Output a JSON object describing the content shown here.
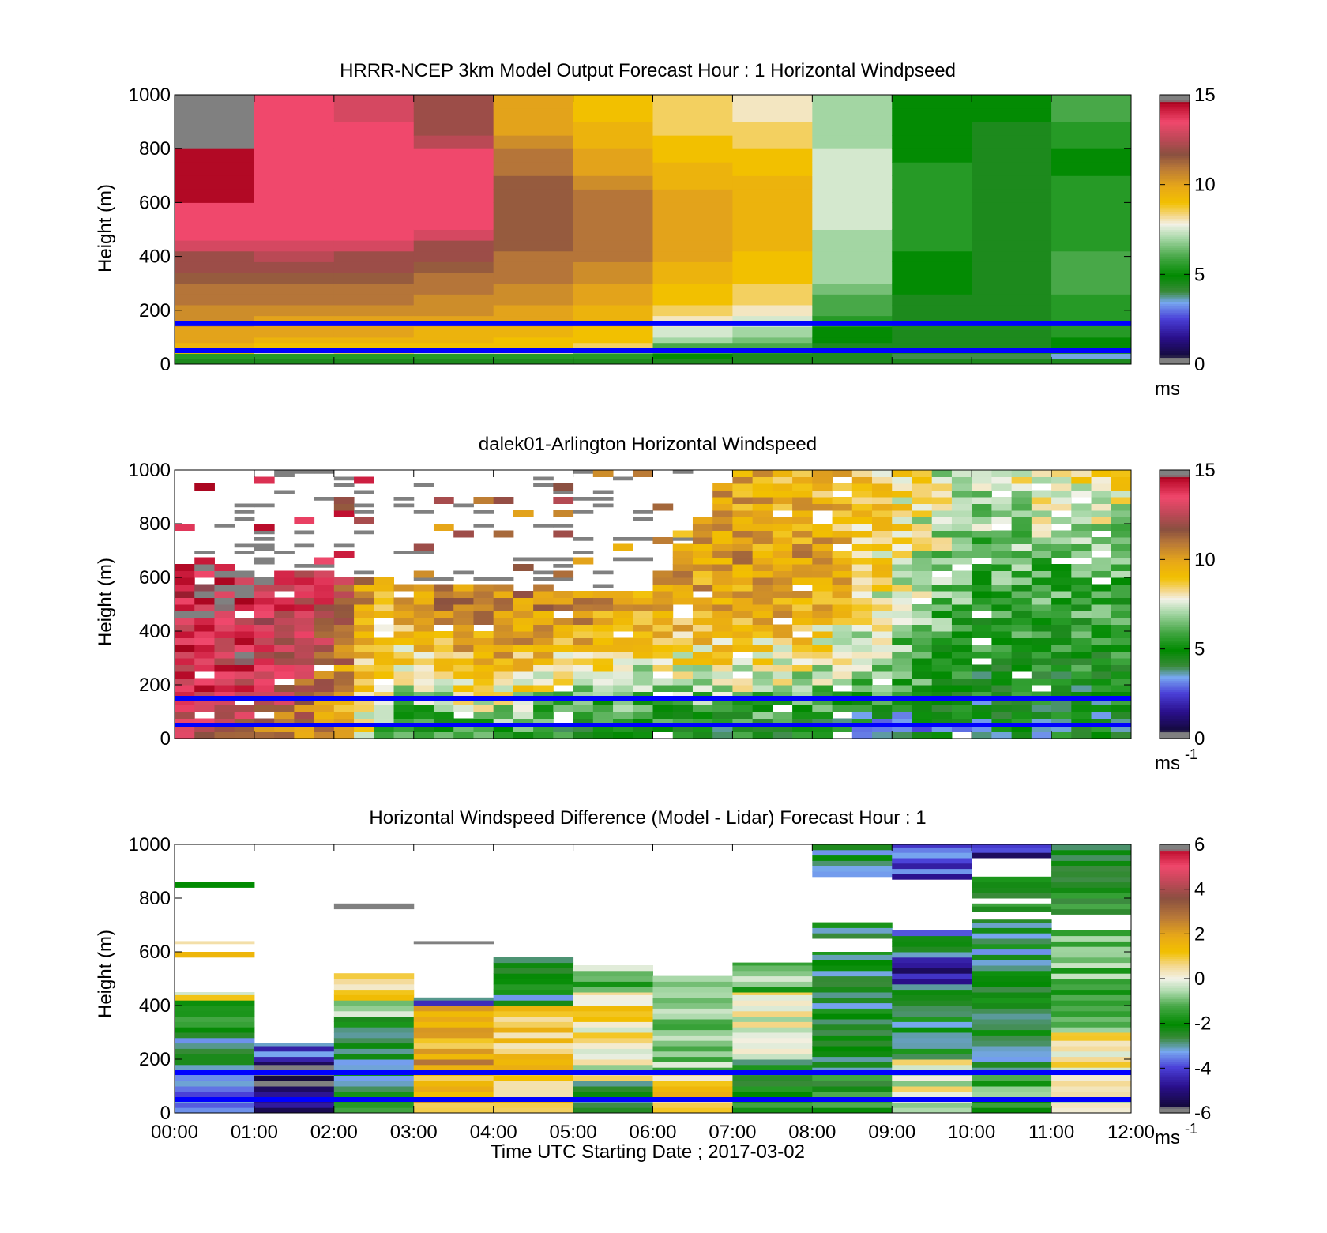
{
  "chart_data": [
    {
      "type": "heatmap",
      "title": "HRRR-NCEP 3km Model Output   Forecast Hour : 1 Horizontal Windpseed",
      "xlabel": "",
      "ylabel": "Height (m)",
      "xlim": [
        0,
        12
      ],
      "ylim": [
        0,
        1000
      ],
      "yticks": [
        "0",
        "200",
        "400",
        "600",
        "800",
        "1000"
      ],
      "colorbar": {
        "ticks": [
          "0",
          "5",
          "10",
          "15"
        ],
        "range": [
          0,
          15
        ],
        "unit": "ms",
        "unit_sup": ""
      },
      "reference_heights": [
        50,
        150
      ],
      "grid": false,
      "heights": [
        40,
        60,
        80,
        100,
        140,
        180,
        220,
        260,
        300,
        340,
        380,
        420,
        460,
        500,
        550,
        600,
        650,
        700,
        750,
        800,
        850,
        900,
        950,
        1000
      ],
      "columns": [
        {
          "time": 0,
          "speeds": [
            5.5,
            9,
            9.5,
            10,
            10,
            10.5,
            10.5,
            11,
            11,
            11.5,
            12,
            12,
            13,
            13.5,
            13.5,
            13.5,
            14.5,
            14.5,
            14.5,
            14.5,
            15.2,
            15.2,
            15.2,
            15.2
          ]
        },
        {
          "time": 1,
          "speeds": [
            5.5,
            8,
            9,
            9.5,
            10,
            10,
            10.5,
            11,
            11,
            11.5,
            12,
            12.5,
            13,
            13.5,
            13.5,
            13.5,
            13.5,
            13.5,
            13.5,
            13.5,
            13.5,
            13.5,
            13.5,
            13.5
          ]
        },
        {
          "time": 2,
          "speeds": [
            5.5,
            8.5,
            9,
            9.5,
            10,
            10,
            10.5,
            11,
            11,
            11.5,
            12,
            12,
            13,
            13.5,
            13.5,
            13.5,
            13.5,
            13.5,
            13.5,
            13.5,
            13.5,
            13.5,
            13,
            13
          ]
        },
        {
          "time": 3,
          "speeds": [
            5.5,
            7.5,
            9,
            9.5,
            9.5,
            10,
            10.5,
            10.5,
            11,
            11,
            11.5,
            12,
            12,
            13,
            13.5,
            13.5,
            13.5,
            13.5,
            13.5,
            13.5,
            12.5,
            12,
            12,
            12
          ]
        },
        {
          "time": 4,
          "speeds": [
            5.5,
            8,
            9,
            9,
            9.5,
            10,
            10,
            10.5,
            10.5,
            11,
            11,
            11,
            11.5,
            11.5,
            11.5,
            11.5,
            11.5,
            11.5,
            11,
            11,
            10.5,
            10,
            10,
            10
          ]
        },
        {
          "time": 5,
          "speeds": [
            5.5,
            6.5,
            8.5,
            9,
            9,
            9.5,
            9.5,
            10,
            10,
            10.5,
            10.5,
            11,
            11,
            11,
            11,
            11,
            11,
            10.5,
            10,
            10,
            9.5,
            9.5,
            9,
            9
          ]
        },
        {
          "time": 6,
          "speeds": [
            5,
            6,
            6,
            7,
            7.5,
            8,
            8.5,
            9,
            9,
            9.5,
            9.5,
            10,
            10,
            10,
            10,
            10,
            10,
            9.5,
            9.5,
            9,
            9,
            8.5,
            8.5,
            8.5
          ]
        },
        {
          "time": 7,
          "speeds": [
            4.5,
            5.5,
            6,
            6.5,
            7,
            7.5,
            8,
            8.5,
            8.5,
            9,
            9,
            9,
            9.5,
            9.5,
            9.5,
            9.5,
            9.5,
            9.5,
            9,
            9,
            8.5,
            8.5,
            8,
            8
          ]
        },
        {
          "time": 8,
          "speeds": [
            4.5,
            4.5,
            4.5,
            5,
            5,
            5.5,
            6,
            6,
            6.5,
            7,
            7,
            7,
            7,
            7,
            7.5,
            7.5,
            7.5,
            7.5,
            7.5,
            7.5,
            7,
            7,
            7,
            7
          ]
        },
        {
          "time": 9,
          "speeds": [
            4,
            4.5,
            4.5,
            4.5,
            4.5,
            4.5,
            4.5,
            4.5,
            5,
            5,
            5,
            5,
            5.5,
            5.5,
            5.5,
            5.5,
            5.5,
            5.5,
            5.5,
            5,
            5,
            5,
            5,
            5
          ]
        },
        {
          "time": 10,
          "speeds": [
            4,
            4.5,
            4.5,
            4.5,
            4.5,
            4.5,
            4.5,
            4.5,
            4.5,
            4.5,
            4.5,
            4.5,
            4.5,
            4.5,
            4.5,
            4.5,
            4.5,
            4.5,
            4.5,
            4.5,
            4.5,
            4.5,
            5,
            5
          ]
        },
        {
          "time": 11,
          "speeds": [
            3.5,
            4.5,
            5,
            5,
            5.5,
            5.5,
            5.5,
            5.5,
            6,
            6,
            6,
            6,
            5.5,
            5.5,
            5.5,
            5.5,
            5.5,
            5.5,
            5,
            5,
            5.5,
            5.5,
            6,
            6
          ]
        }
      ]
    },
    {
      "type": "heatmap",
      "title": "dalek01-Arlington  Horizontal Windspeed",
      "xlabel": "",
      "ylabel": "Height (m)",
      "xlim": [
        0,
        12
      ],
      "ylim": [
        0,
        1000
      ],
      "yticks": [
        "0",
        "200",
        "400",
        "600",
        "800",
        "1000"
      ],
      "colorbar": {
        "ticks": [
          "0",
          "5",
          "10",
          "15"
        ],
        "range": [
          0,
          15
        ],
        "unit": "ms",
        "unit_sup": "-1"
      },
      "reference_heights": [
        50,
        150
      ],
      "grid": false,
      "time_step_hours": 0.25,
      "height_step_m": 25,
      "profile_points": [
        {
          "time": 0,
          "speeds": [
            [
              30,
              13
            ],
            [
              200,
              13.5
            ],
            [
              400,
              13.5
            ],
            [
              600,
              14
            ]
          ],
          "top": 650
        },
        {
          "time": 1,
          "speeds": [
            [
              30,
              11.5
            ],
            [
              200,
              13.5
            ],
            [
              400,
              13.5
            ],
            [
              600,
              14
            ]
          ],
          "top": 630
        },
        {
          "time": 2,
          "speeds": [
            [
              30,
              10
            ],
            [
              200,
              11
            ],
            [
              400,
              12.5
            ],
            [
              600,
              13
            ]
          ],
          "top": 620
        },
        {
          "time": 2.5,
          "speeds": [
            [
              30,
              7
            ],
            [
              200,
              7.5
            ],
            [
              400,
              9
            ],
            [
              600,
              9.5
            ]
          ],
          "top": 600
        },
        {
          "time": 3,
          "speeds": [
            [
              30,
              5
            ],
            [
              200,
              8
            ],
            [
              400,
              9.5
            ],
            [
              600,
              11
            ]
          ],
          "top": 580
        },
        {
          "time": 4,
          "speeds": [
            [
              30,
              6
            ],
            [
              200,
              9
            ],
            [
              400,
              10.5
            ],
            [
              600,
              11
            ]
          ],
          "top": 580
        },
        {
          "time": 5,
          "speeds": [
            [
              30,
              5
            ],
            [
              200,
              7.5
            ],
            [
              400,
              10
            ],
            [
              600,
              11
            ]
          ],
          "top": 560
        },
        {
          "time": 6,
          "speeds": [
            [
              30,
              5
            ],
            [
              200,
              7
            ],
            [
              400,
              9.5
            ],
            [
              600,
              10
            ]
          ],
          "top": 560
        },
        {
          "time": 7,
          "speeds": [
            [
              30,
              5
            ],
            [
              200,
              7.5
            ],
            [
              400,
              9.5
            ],
            [
              600,
              10
            ],
            [
              900,
              10
            ]
          ],
          "top": 1000
        },
        {
          "time": 8,
          "speeds": [
            [
              30,
              5
            ],
            [
              200,
              7
            ],
            [
              400,
              9
            ],
            [
              600,
              10.5
            ],
            [
              900,
              9.5
            ]
          ],
          "top": 1000
        },
        {
          "time": 9,
          "speeds": [
            [
              30,
              3.5
            ],
            [
              200,
              6
            ],
            [
              400,
              7
            ],
            [
              600,
              8
            ],
            [
              900,
              8.5
            ]
          ],
          "top": 1000
        },
        {
          "time": 10,
          "speeds": [
            [
              30,
              4
            ],
            [
              200,
              5
            ],
            [
              400,
              5.5
            ],
            [
              600,
              6
            ],
            [
              900,
              7
            ]
          ],
          "top": 1000
        },
        {
          "time": 11,
          "speeds": [
            [
              30,
              4.5
            ],
            [
              200,
              5
            ],
            [
              400,
              5.5
            ],
            [
              600,
              6
            ],
            [
              900,
              8
            ]
          ],
          "top": 1000
        },
        {
          "time": 11.75,
          "speeds": [
            [
              30,
              4.5
            ],
            [
              200,
              5
            ],
            [
              400,
              5.5
            ],
            [
              600,
              6
            ],
            [
              900,
              8
            ]
          ],
          "top": 1000
        }
      ]
    },
    {
      "type": "heatmap",
      "title": "Horizontal Windspeed Difference (Model - Lidar) Forecast Hour : 1",
      "xlabel": "Time UTC  Starting Date ; 2017-03-02",
      "ylabel": "Height (m)",
      "xlim": [
        0,
        12
      ],
      "ylim": [
        0,
        1000
      ],
      "xticks": [
        "00:00",
        "01:00",
        "02:00",
        "03:00",
        "04:00",
        "05:00",
        "06:00",
        "07:00",
        "08:00",
        "09:00",
        "10:00",
        "11:00",
        "12:00"
      ],
      "yticks": [
        "0",
        "200",
        "400",
        "600",
        "800",
        "1000"
      ],
      "colorbar": {
        "ticks": [
          "-6",
          "-4",
          "-2",
          "0",
          "2",
          "4",
          "6"
        ],
        "range": [
          -6,
          6
        ],
        "unit": "ms",
        "unit_sup": "-1"
      },
      "reference_heights": [
        50,
        150
      ],
      "grid": false,
      "height_step_m": 20,
      "columns": [
        {
          "time": 0,
          "segments": [
            [
              0,
              160,
              -4
            ],
            [
              160,
              300,
              -2.5
            ],
            [
              300,
              420,
              -1.5
            ],
            [
              420,
              450,
              0.5
            ],
            [
              580,
              600,
              1.5
            ],
            [
              630,
              640,
              0.8
            ],
            [
              840,
              860,
              -2.5
            ]
          ]
        },
        {
          "time": 1,
          "segments": [
            [
              0,
              190,
              -5.5
            ],
            [
              190,
              260,
              -4
            ]
          ]
        },
        {
          "time": 2,
          "segments": [
            [
              0,
              100,
              -2
            ],
            [
              100,
              360,
              -2.5
            ],
            [
              360,
              420,
              -1
            ],
            [
              420,
              520,
              0.5
            ],
            [
              760,
              780,
              6.5
            ]
          ]
        },
        {
          "time": 3,
          "segments": [
            [
              0,
              180,
              1.5
            ],
            [
              180,
              220,
              2
            ],
            [
              220,
              400,
              1.5
            ],
            [
              400,
              430,
              -3.5
            ],
            [
              630,
              640,
              6.5
            ]
          ]
        },
        {
          "time": 4,
          "segments": [
            [
              0,
              200,
              1.2
            ],
            [
              200,
              400,
              1
            ],
            [
              400,
              580,
              -2.5
            ]
          ]
        },
        {
          "time": 5,
          "segments": [
            [
              0,
              120,
              -2.5
            ],
            [
              120,
              200,
              0
            ],
            [
              200,
              450,
              0.5
            ],
            [
              450,
              550,
              -1
            ]
          ]
        },
        {
          "time": 6,
          "segments": [
            [
              0,
              150,
              1
            ],
            [
              150,
              510,
              -1
            ]
          ]
        },
        {
          "time": 7,
          "segments": [
            [
              0,
              200,
              -2
            ],
            [
              200,
              450,
              0
            ],
            [
              450,
              560,
              -1
            ]
          ]
        },
        {
          "time": 8,
          "segments": [
            [
              0,
              150,
              -2
            ],
            [
              150,
              600,
              -2.5
            ],
            [
              650,
              710,
              -2.5
            ],
            [
              880,
              1000,
              -2.5
            ]
          ]
        },
        {
          "time": 9,
          "segments": [
            [
              0,
              200,
              0
            ],
            [
              200,
              480,
              -2.5
            ],
            [
              480,
              580,
              -4.5
            ],
            [
              580,
              680,
              -3
            ],
            [
              870,
              1000,
              -4
            ]
          ]
        },
        {
          "time": 10,
          "segments": [
            [
              0,
              150,
              -1.5
            ],
            [
              150,
              720,
              -2.5
            ],
            [
              750,
              780,
              -2
            ],
            [
              800,
              880,
              -2
            ],
            [
              950,
              1000,
              -4.5
            ]
          ]
        },
        {
          "time": 11,
          "segments": [
            [
              0,
              150,
              0
            ],
            [
              150,
              300,
              0.5
            ],
            [
              300,
              680,
              -1
            ],
            [
              740,
              1000,
              -2
            ]
          ]
        }
      ]
    }
  ]
}
